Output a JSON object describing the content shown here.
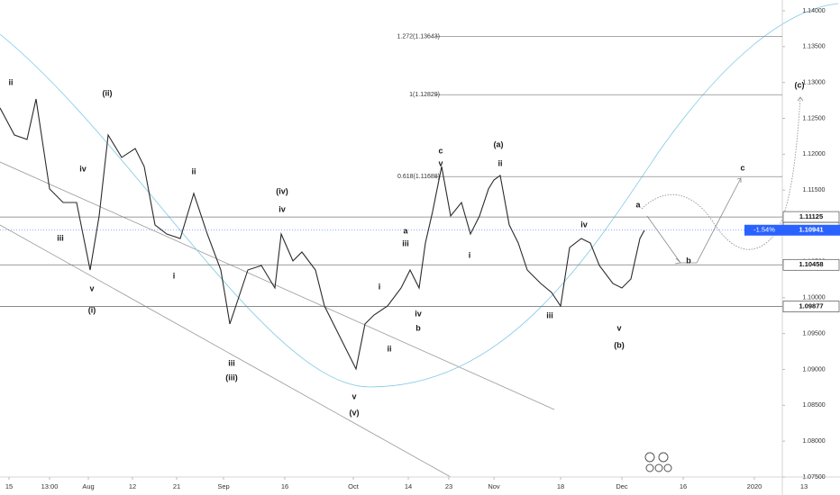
{
  "chart_data": {
    "type": "line",
    "x": [
      0,
      4,
      7.5,
      10,
      13.75,
      17.5,
      21.25,
      25,
      27.5,
      30,
      33.75,
      37.5,
      40,
      43,
      46.25,
      50,
      53.75,
      57.5,
      61.25,
      63.75,
      66.25,
      68.75,
      72.5,
      76.25,
      78,
      81.25,
      83.75,
      87.5,
      90,
      93.75,
      96.25,
      98.75,
      101.25,
      103.75,
      107.5,
      111.25,
      113.75,
      116.25,
      118,
      120,
      122.5,
      125,
      128,
      130.5,
      133,
      135.5,
      137,
      138.75,
      141.25,
      143.75,
      146.25,
      150,
      153,
      155.5,
      158,
      161.25,
      163.75,
      166.25,
      170,
      172.5,
      175,
      177.5,
      178.75
    ],
    "values": [
      1.12645,
      1.12268,
      1.12206,
      1.1277,
      1.11516,
      1.11327,
      1.11327,
      1.10386,
      1.11139,
      1.12268,
      1.11955,
      1.1208,
      1.11829,
      1.11014,
      1.10888,
      1.10825,
      1.11453,
      1.10888,
      1.10386,
      1.09634,
      1.1001,
      1.10386,
      1.10449,
      1.10135,
      1.10888,
      1.10512,
      1.10637,
      1.10386,
      1.09884,
      1.09508,
      1.09257,
      1.09006,
      1.09634,
      1.09759,
      1.09884,
      1.10135,
      1.10386,
      1.10135,
      1.10762,
      1.11202,
      1.11829,
      1.11139,
      1.11327,
      1.10888,
      1.11139,
      1.11516,
      1.11641,
      1.11704,
      1.11014,
      1.10762,
      1.10386,
      1.10198,
      1.10072,
      1.09884,
      1.107,
      1.10825,
      1.10762,
      1.10449,
      1.10198,
      1.10135,
      1.10261,
      1.10825,
      1.10941
    ],
    "color": "#2b2b2b",
    "xlim": [
      0,
      233
    ],
    "ylim": [
      1.075,
      1.1415
    ],
    "xticks": [
      {
        "value": 2.5,
        "label": "15"
      },
      {
        "value": 13.75,
        "label": "13:00"
      },
      {
        "value": 24.5,
        "label": "Aug"
      },
      {
        "value": 36.75,
        "label": "12"
      },
      {
        "value": 49,
        "label": "21"
      },
      {
        "value": 62,
        "label": "Sep"
      },
      {
        "value": 79,
        "label": "16"
      },
      {
        "value": 98,
        "label": "Oct"
      },
      {
        "value": 113.25,
        "label": "14"
      },
      {
        "value": 124.5,
        "label": "23"
      },
      {
        "value": 137,
        "label": "Nov"
      },
      {
        "value": 155.5,
        "label": "18"
      },
      {
        "value": 172.5,
        "label": "Dec"
      },
      {
        "value": 189.5,
        "label": "16"
      },
      {
        "value": 209.25,
        "label": "2020"
      },
      {
        "value": 223,
        "label": "13"
      }
    ],
    "yticks": [
      {
        "value": 1.14,
        "label": "1.14000"
      },
      {
        "value": 1.135,
        "label": "1.13500"
      },
      {
        "value": 1.13,
        "label": "1.13000"
      },
      {
        "value": 1.125,
        "label": "1.12500"
      },
      {
        "value": 1.12,
        "label": "1.12000"
      },
      {
        "value": 1.115,
        "label": "1.11500"
      },
      {
        "value": 1.11,
        "label": "1.11000"
      },
      {
        "value": 1.105,
        "label": "1.10500"
      },
      {
        "value": 1.1,
        "label": "1.10000"
      },
      {
        "value": 1.095,
        "label": "1.09500"
      },
      {
        "value": 1.09,
        "label": "1.09000"
      },
      {
        "value": 1.085,
        "label": "1.08500"
      },
      {
        "value": 1.08,
        "label": "1.08000"
      },
      {
        "value": 1.075,
        "label": "1.07500"
      }
    ],
    "price_lines": [
      {
        "value": 1.11125,
        "label": "1.11125"
      },
      {
        "value": 1.10458,
        "label": "1.10458"
      },
      {
        "value": 1.09877,
        "label": "1.09877"
      }
    ],
    "high_marker": {
      "value": 1.11125,
      "label": "1.11125"
    },
    "current_price": {
      "value": 1.10941,
      "label": "1.10941",
      "change": "-1.54%"
    },
    "fib_levels": [
      {
        "value": 1.13643,
        "label": "1.272(1.13643)"
      },
      {
        "value": 1.12829,
        "label": "1(1.12829)"
      },
      {
        "value": 1.11688,
        "label": "0.618(1.11688)"
      }
    ],
    "annotations": [
      "ii",
      "iii",
      "iv",
      "v",
      "(i)",
      "(ii)",
      "ii",
      "i",
      "iii",
      "(iii)",
      "(iv)",
      "iv",
      "v",
      "(v)",
      "a",
      "iii",
      "iv",
      "b",
      "i",
      "ii",
      "c",
      "v",
      "i",
      "(a)",
      "ii",
      "iii",
      "iv",
      "v",
      "(b)",
      "a",
      "b",
      "c",
      "(c)"
    ]
  }
}
